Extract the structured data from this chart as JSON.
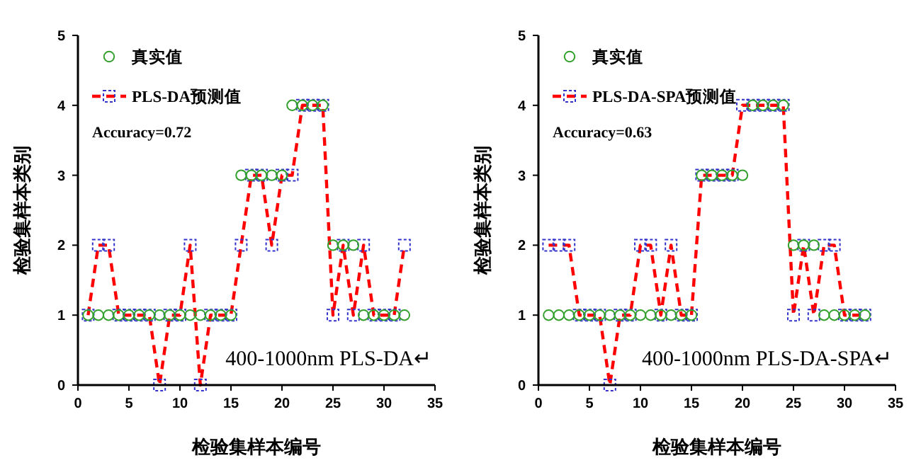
{
  "chart_data": [
    {
      "type": "line",
      "xlabel": "检验集样本编号",
      "ylabel": "检验集样本类别",
      "xlim": [
        0,
        35
      ],
      "xticks": [
        0,
        5,
        10,
        15,
        20,
        25,
        30,
        35
      ],
      "ylim": [
        0,
        5
      ],
      "yticks": [
        0,
        1,
        2,
        3,
        4,
        5
      ],
      "grid": false,
      "legend": "top left",
      "annotations": [
        "Accuracy=0.72",
        "400-1000nm PLS-DA↵"
      ],
      "x": [
        1,
        2,
        3,
        4,
        5,
        6,
        7,
        8,
        9,
        10,
        11,
        12,
        13,
        14,
        15,
        16,
        17,
        18,
        19,
        20,
        21,
        22,
        23,
        24,
        25,
        26,
        27,
        28,
        29,
        30,
        31,
        32
      ],
      "series": [
        {
          "name": "真实值",
          "type": "scatter",
          "marker": "circle",
          "color": "#33a02c",
          "values": [
            1,
            1,
            1,
            1,
            1,
            1,
            1,
            1,
            1,
            1,
            1,
            1,
            1,
            1,
            1,
            3,
            3,
            3,
            3,
            3,
            4,
            4,
            4,
            4,
            2,
            2,
            2,
            1,
            1,
            1,
            1,
            1
          ]
        },
        {
          "name": "PLS-DA预测值",
          "line_style": "dashed",
          "marker": "square",
          "color": "#ff0000",
          "colors": [
            "#3333cc",
            "#3333cc",
            "#3333cc",
            "#3333cc",
            "#3333cc",
            "#3333cc",
            "#3333cc",
            "#3333cc",
            "#3333cc",
            "#3333cc",
            "#3333cc",
            "#3333cc",
            "#3333cc",
            "#3333cc",
            "#3333cc",
            "#3333cc",
            "#3333cc",
            "#3333cc",
            "#3333cc",
            "#3333cc",
            "#3333cc",
            "#3333cc",
            "#3333cc",
            "#3333cc",
            "#3333cc",
            "#3333cc",
            "#3333cc",
            "#3333cc",
            "#3333cc",
            "#3333cc",
            "#3333cc",
            "#3333cc"
          ],
          "values": [
            1,
            2,
            2,
            1,
            1,
            1,
            1,
            0,
            1,
            1,
            2,
            0,
            1,
            1,
            1,
            2,
            3,
            3,
            2,
            3,
            3,
            4,
            4,
            4,
            1,
            2,
            1,
            2,
            1,
            1,
            1,
            2
          ]
        }
      ]
    },
    {
      "type": "line",
      "xlabel": "检验集样本编号",
      "ylabel": "检验集样本类别",
      "xlim": [
        0,
        35
      ],
      "xticks": [
        0,
        5,
        10,
        15,
        20,
        25,
        30,
        35
      ],
      "ylim": [
        0,
        5
      ],
      "yticks": [
        0,
        1,
        2,
        3,
        4,
        5
      ],
      "grid": false,
      "legend": "top left",
      "annotations": [
        "Accuracy=0.63",
        "400-1000nm PLS-DA-SPA↵"
      ],
      "x": [
        1,
        2,
        3,
        4,
        5,
        6,
        7,
        8,
        9,
        10,
        11,
        12,
        13,
        14,
        15,
        16,
        17,
        18,
        19,
        20,
        21,
        22,
        23,
        24,
        25,
        26,
        27,
        28,
        29,
        30,
        31,
        32
      ],
      "series": [
        {
          "name": "真实值",
          "type": "scatter",
          "marker": "circle",
          "color": "#33a02c",
          "values": [
            1,
            1,
            1,
            1,
            1,
            1,
            1,
            1,
            1,
            1,
            1,
            1,
            1,
            1,
            1,
            3,
            3,
            3,
            3,
            3,
            4,
            4,
            4,
            4,
            2,
            2,
            2,
            1,
            1,
            1,
            1,
            1
          ]
        },
        {
          "name": "PLS-DA-SPA预测值",
          "line_style": "dashed",
          "marker": "square",
          "color": "#ff0000",
          "colors": [
            "#3333cc",
            "#3333cc",
            "#3333cc",
            "#3333cc",
            "#3333cc",
            "#3333cc",
            "#3333cc",
            "#3333cc",
            "#3333cc",
            "#3333cc",
            "#3333cc",
            "#3333cc",
            "#3333cc",
            "#3333cc",
            "#3333cc",
            "#3333cc",
            "#3333cc",
            "#3333cc",
            "#3333cc",
            "#3333cc",
            "#3333cc",
            "#3333cc",
            "#3333cc",
            "#3333cc",
            "#3333cc",
            "#3333cc",
            "#3333cc",
            "#3333cc",
            "#3333cc",
            "#3333cc",
            "#3333cc",
            "#3333cc"
          ],
          "values": [
            2,
            2,
            2,
            1,
            1,
            1,
            0,
            1,
            1,
            2,
            2,
            1,
            2,
            1,
            1,
            3,
            3,
            3,
            3,
            4,
            4,
            4,
            4,
            4,
            1,
            2,
            1,
            2,
            2,
            1,
            1,
            1
          ]
        }
      ]
    }
  ]
}
